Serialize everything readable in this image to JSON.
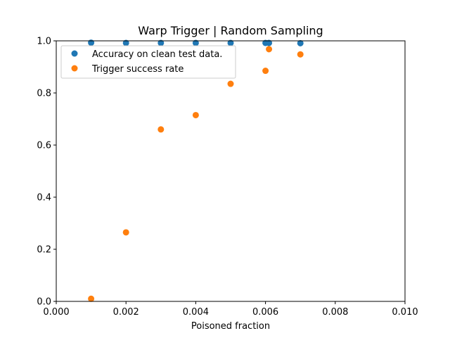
{
  "chart_data": {
    "type": "scatter",
    "title": "Warp Trigger | Random Sampling",
    "xlabel": "Poisoned fraction",
    "ylabel": "",
    "xlim": [
      0.0,
      0.01
    ],
    "ylim": [
      0.0,
      1.0
    ],
    "xticks": [
      "0.000",
      "0.002",
      "0.004",
      "0.006",
      "0.008",
      "0.010"
    ],
    "yticks": [
      "0.0",
      "0.2",
      "0.4",
      "0.6",
      "0.8",
      "1.0"
    ],
    "grid": false,
    "legend_position": "top-left",
    "series": [
      {
        "name": "Accuracy on clean test data.",
        "color": "#1f77b4",
        "x": [
          0.001,
          0.002,
          0.003,
          0.004,
          0.005,
          0.006,
          0.0061,
          0.007
        ],
        "y": [
          0.993,
          0.992,
          0.992,
          0.992,
          0.992,
          0.992,
          0.992,
          0.991
        ]
      },
      {
        "name": "Trigger success rate",
        "color": "#ff7f0e",
        "x": [
          0.001,
          0.002,
          0.003,
          0.004,
          0.005,
          0.006,
          0.0061,
          0.007
        ],
        "y": [
          0.01,
          0.265,
          0.66,
          0.715,
          0.835,
          0.885,
          0.968,
          0.948
        ]
      }
    ]
  }
}
